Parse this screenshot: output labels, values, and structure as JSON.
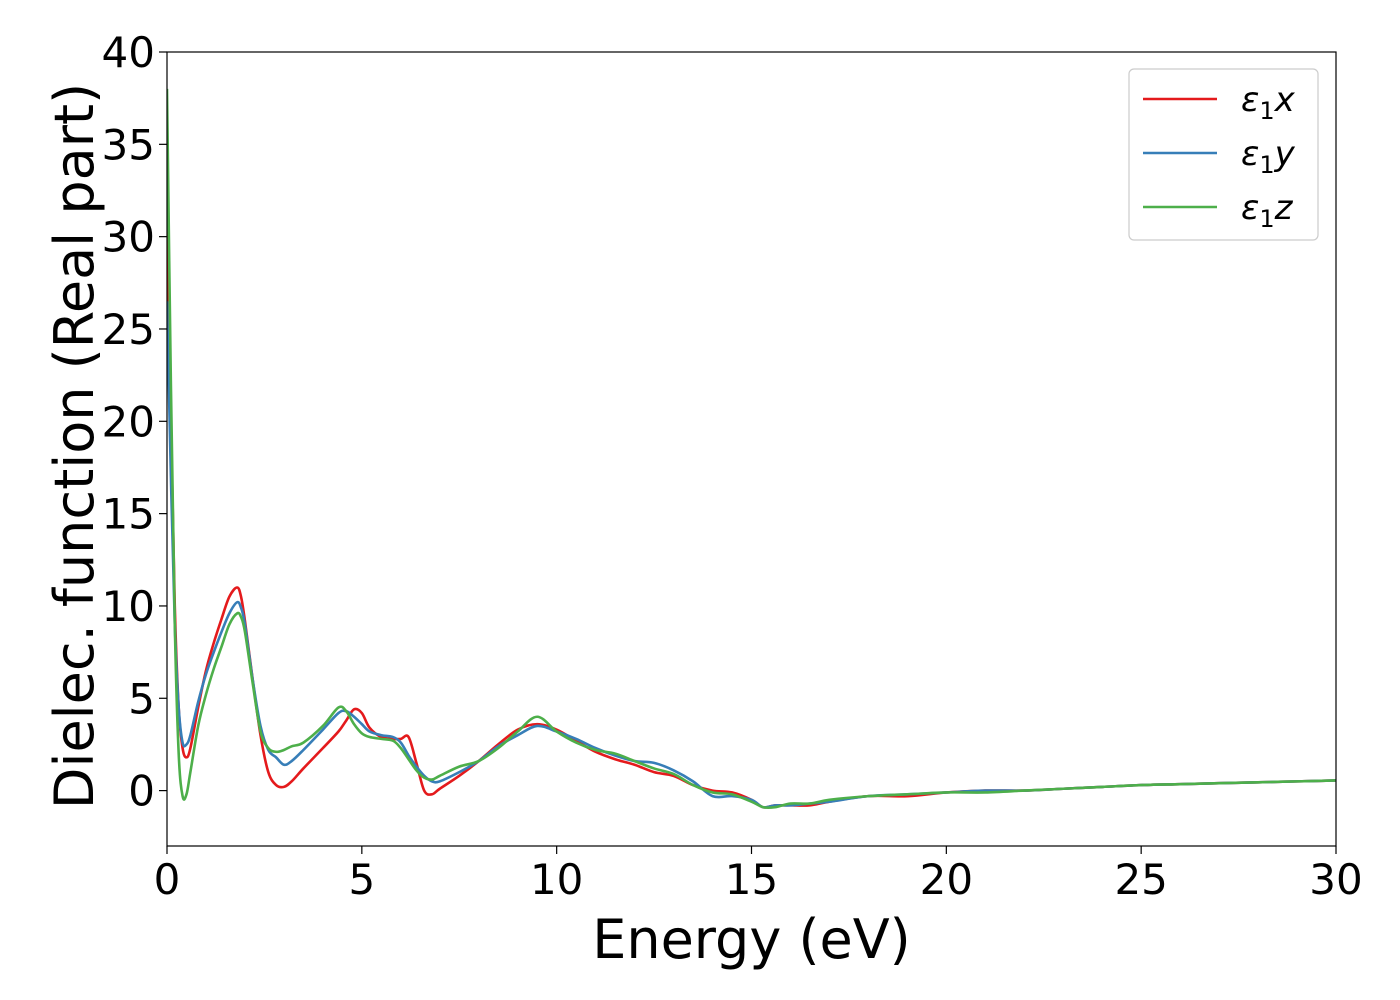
{
  "chart_data": {
    "type": "line",
    "title": "",
    "xlabel": "Energy (eV)",
    "ylabel": "Dielec. function (Real part)",
    "xlim": [
      0,
      30
    ],
    "ylim": [
      -3,
      40
    ],
    "xticks": [
      0,
      5,
      10,
      15,
      20,
      25,
      30
    ],
    "yticks": [
      0,
      5,
      10,
      15,
      20,
      25,
      30,
      35,
      40
    ],
    "grid": false,
    "legend_position": "top-right",
    "series": [
      {
        "name": "ε₁x",
        "legend": {
          "base": "ε",
          "sub": "1",
          "suffix": "x"
        },
        "color": "#e41a1c",
        "x": [
          0.0,
          0.1,
          0.2,
          0.3,
          0.4,
          0.5,
          0.6,
          0.8,
          1.0,
          1.2,
          1.4,
          1.6,
          1.8,
          1.9,
          2.0,
          2.2,
          2.4,
          2.6,
          2.8,
          3.0,
          3.2,
          3.5,
          4.0,
          4.4,
          4.6,
          4.8,
          5.0,
          5.2,
          5.5,
          5.8,
          6.0,
          6.2,
          6.4,
          6.6,
          6.8,
          7.0,
          7.5,
          8.0,
          8.5,
          9.0,
          9.5,
          10.0,
          10.5,
          11.0,
          11.5,
          12.0,
          12.5,
          13.0,
          13.5,
          14.0,
          14.5,
          15.0,
          15.3,
          15.6,
          16.0,
          16.5,
          17.0,
          18.0,
          19.0,
          20.0,
          21.0,
          22.0,
          23.0,
          24.0,
          25.0,
          26.0,
          27.0,
          28.0,
          29.0,
          30.0
        ],
        "values": [
          32.0,
          20.0,
          10.0,
          4.5,
          2.3,
          1.8,
          2.3,
          4.5,
          6.5,
          8.0,
          9.3,
          10.5,
          11.0,
          10.5,
          9.2,
          6.0,
          3.0,
          1.0,
          0.3,
          0.2,
          0.5,
          1.2,
          2.3,
          3.2,
          3.8,
          4.4,
          4.2,
          3.4,
          2.9,
          2.8,
          2.8,
          2.9,
          1.5,
          0.0,
          -0.2,
          0.1,
          0.8,
          1.6,
          2.5,
          3.3,
          3.6,
          3.3,
          2.7,
          2.1,
          1.7,
          1.4,
          1.0,
          0.8,
          0.3,
          0.0,
          -0.1,
          -0.5,
          -0.9,
          -0.8,
          -0.8,
          -0.8,
          -0.6,
          -0.3,
          -0.3,
          -0.1,
          0.0,
          0.0,
          0.1,
          0.2,
          0.3,
          0.35,
          0.4,
          0.45,
          0.5,
          0.55
        ]
      },
      {
        "name": "ε₁y",
        "legend": {
          "base": "ε",
          "sub": "1",
          "suffix": "y"
        },
        "color": "#377eb8",
        "x": [
          0.0,
          0.1,
          0.2,
          0.3,
          0.4,
          0.5,
          0.6,
          0.8,
          1.0,
          1.2,
          1.4,
          1.6,
          1.8,
          1.9,
          2.0,
          2.2,
          2.4,
          2.6,
          2.8,
          3.0,
          3.2,
          3.5,
          4.0,
          4.4,
          4.6,
          4.8,
          5.0,
          5.2,
          5.5,
          5.8,
          6.0,
          6.2,
          6.4,
          6.6,
          6.8,
          7.0,
          7.5,
          8.0,
          8.5,
          9.0,
          9.5,
          10.0,
          10.5,
          11.0,
          11.5,
          12.0,
          12.5,
          13.0,
          13.5,
          14.0,
          14.5,
          15.0,
          15.3,
          15.6,
          16.0,
          16.5,
          17.0,
          18.0,
          19.0,
          20.0,
          21.0,
          22.0,
          23.0,
          24.0,
          25.0,
          26.0,
          27.0,
          28.0,
          29.0,
          30.0
        ],
        "values": [
          26.5,
          17.0,
          9.0,
          4.5,
          2.6,
          2.5,
          3.0,
          4.8,
          6.3,
          7.5,
          8.6,
          9.6,
          10.2,
          9.9,
          9.0,
          6.0,
          3.5,
          2.2,
          1.8,
          1.4,
          1.6,
          2.2,
          3.3,
          4.2,
          4.3,
          4.0,
          3.6,
          3.2,
          3.0,
          2.9,
          2.6,
          1.9,
          1.3,
          0.8,
          0.5,
          0.5,
          1.0,
          1.6,
          2.4,
          3.0,
          3.5,
          3.2,
          2.8,
          2.3,
          1.9,
          1.6,
          1.5,
          1.1,
          0.5,
          -0.3,
          -0.3,
          -0.5,
          -0.9,
          -0.8,
          -0.8,
          -0.7,
          -0.6,
          -0.3,
          -0.2,
          -0.1,
          0.0,
          0.0,
          0.1,
          0.2,
          0.3,
          0.35,
          0.4,
          0.45,
          0.5,
          0.55
        ]
      },
      {
        "name": "ε₁z",
        "legend": {
          "base": "ε",
          "sub": "1",
          "suffix": "z"
        },
        "color": "#4daf4a",
        "x": [
          0.0,
          0.1,
          0.2,
          0.3,
          0.4,
          0.5,
          0.6,
          0.8,
          1.0,
          1.2,
          1.4,
          1.6,
          1.8,
          1.9,
          2.0,
          2.2,
          2.4,
          2.6,
          2.8,
          3.0,
          3.2,
          3.5,
          4.0,
          4.4,
          4.6,
          4.8,
          5.0,
          5.2,
          5.5,
          5.8,
          6.0,
          6.2,
          6.4,
          6.6,
          6.8,
          7.0,
          7.5,
          8.0,
          8.5,
          9.0,
          9.5,
          10.0,
          10.5,
          11.0,
          11.5,
          12.0,
          12.5,
          13.0,
          13.5,
          14.0,
          14.5,
          15.0,
          15.3,
          15.6,
          16.0,
          16.5,
          17.0,
          18.0,
          19.0,
          20.0,
          21.0,
          22.0,
          23.0,
          24.0,
          25.0,
          26.0,
          27.0,
          28.0,
          29.0,
          30.0
        ],
        "values": [
          38.0,
          22.0,
          9.0,
          2.0,
          -0.3,
          -0.2,
          1.0,
          3.5,
          5.2,
          6.6,
          7.8,
          9.0,
          9.6,
          9.4,
          8.6,
          5.8,
          3.2,
          2.3,
          2.1,
          2.2,
          2.4,
          2.6,
          3.5,
          4.5,
          4.3,
          3.6,
          3.1,
          2.9,
          2.8,
          2.7,
          2.3,
          1.7,
          1.1,
          0.7,
          0.6,
          0.8,
          1.3,
          1.6,
          2.3,
          3.2,
          4.0,
          3.2,
          2.6,
          2.2,
          2.0,
          1.6,
          1.2,
          0.9,
          0.3,
          -0.1,
          -0.2,
          -0.6,
          -0.9,
          -0.9,
          -0.7,
          -0.7,
          -0.5,
          -0.3,
          -0.2,
          -0.1,
          -0.1,
          0.0,
          0.1,
          0.2,
          0.3,
          0.35,
          0.4,
          0.45,
          0.5,
          0.55
        ]
      }
    ]
  }
}
